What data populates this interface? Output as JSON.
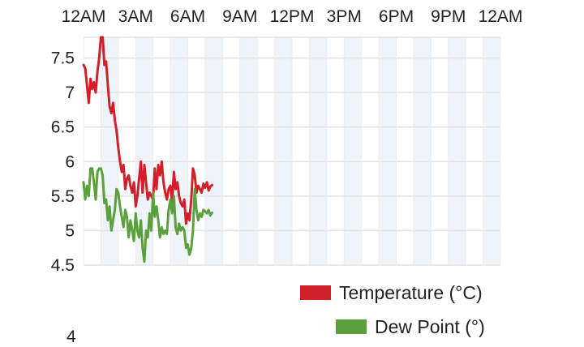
{
  "chart_data": {
    "type": "line",
    "x_ticks": [
      "12AM",
      "3AM",
      "6AM",
      "9AM",
      "12PM",
      "3PM",
      "6PM",
      "9PM",
      "12AM"
    ],
    "y_ticks": [
      "4.5",
      "5",
      "5.5",
      "6",
      "6.5",
      "7",
      "7.5"
    ],
    "ylim": [
      4.5,
      7.8
    ],
    "xlim_hours": [
      0,
      24
    ],
    "grid": true,
    "legend_position": "bottom-right",
    "series": [
      {
        "name": "Temperature (°C)",
        "color": "#d0202a",
        "x_hours": [
          0.0,
          0.1,
          0.2,
          0.3,
          0.4,
          0.5,
          0.6,
          0.7,
          0.8,
          0.9,
          1.0,
          1.1,
          1.2,
          1.3,
          1.4,
          1.5,
          1.6,
          1.7,
          1.8,
          1.9,
          2.0,
          2.1,
          2.2,
          2.3,
          2.4,
          2.5,
          2.6,
          2.7,
          2.8,
          2.9,
          3.0,
          3.1,
          3.2,
          3.3,
          3.4,
          3.5,
          3.6,
          3.7,
          3.8,
          3.9,
          4.0,
          4.1,
          4.2,
          4.3,
          4.4,
          4.5,
          4.6,
          4.7,
          4.8,
          4.9,
          5.0,
          5.1,
          5.2,
          5.3,
          5.4,
          5.5,
          5.6,
          5.7,
          5.8,
          5.9,
          6.0,
          6.1,
          6.2,
          6.3,
          6.4,
          6.5,
          6.6,
          6.7,
          6.8,
          6.9,
          7.0,
          7.1,
          7.2,
          7.3,
          7.4
        ],
        "values": [
          7.4,
          7.35,
          7.1,
          6.85,
          7.2,
          7.05,
          7.15,
          7.0,
          7.3,
          7.5,
          7.9,
          7.8,
          7.4,
          7.45,
          7.1,
          6.8,
          6.7,
          6.85,
          6.6,
          6.45,
          6.2,
          6.0,
          5.85,
          5.95,
          5.6,
          5.75,
          5.8,
          5.65,
          5.55,
          5.7,
          5.35,
          5.5,
          5.75,
          6.0,
          5.55,
          5.95,
          5.7,
          5.45,
          5.55,
          5.5,
          5.45,
          5.9,
          5.6,
          5.95,
          5.8,
          6.0,
          5.7,
          5.55,
          5.45,
          5.6,
          5.65,
          5.4,
          5.85,
          5.6,
          5.7,
          5.5,
          5.4,
          5.35,
          5.45,
          5.1,
          5.25,
          5.15,
          5.45,
          5.9,
          5.8,
          5.55,
          5.65,
          5.6,
          5.55,
          5.68,
          5.62,
          5.7,
          5.58,
          5.64,
          5.66
        ]
      },
      {
        "name": "Dew Point (°)",
        "color": "#5aa03c",
        "x_hours": [
          0.0,
          0.1,
          0.2,
          0.3,
          0.4,
          0.5,
          0.6,
          0.7,
          0.8,
          0.9,
          1.0,
          1.1,
          1.2,
          1.3,
          1.4,
          1.5,
          1.6,
          1.7,
          1.8,
          1.9,
          2.0,
          2.1,
          2.2,
          2.3,
          2.4,
          2.5,
          2.6,
          2.7,
          2.8,
          2.9,
          3.0,
          3.1,
          3.2,
          3.3,
          3.4,
          3.5,
          3.6,
          3.7,
          3.8,
          3.9,
          4.0,
          4.1,
          4.2,
          4.3,
          4.4,
          4.5,
          4.6,
          4.7,
          4.8,
          4.9,
          5.0,
          5.1,
          5.2,
          5.3,
          5.4,
          5.5,
          5.6,
          5.7,
          5.8,
          5.9,
          6.0,
          6.1,
          6.2,
          6.3,
          6.4,
          6.5,
          6.6,
          6.7,
          6.8,
          6.9,
          7.0,
          7.1,
          7.2,
          7.3,
          7.4
        ],
        "values": [
          5.7,
          5.45,
          5.65,
          5.5,
          5.9,
          5.9,
          5.7,
          5.45,
          5.85,
          5.9,
          5.9,
          5.8,
          5.4,
          5.45,
          5.15,
          5.35,
          5.0,
          5.15,
          5.3,
          5.6,
          5.55,
          5.35,
          5.2,
          5.05,
          5.3,
          5.2,
          4.9,
          5.15,
          5.0,
          4.85,
          5.25,
          5.0,
          4.9,
          5.15,
          4.75,
          4.55,
          5.0,
          4.9,
          5.25,
          5.0,
          5.55,
          5.2,
          5.35,
          5.15,
          4.9,
          5.05,
          4.95,
          5.0,
          4.95,
          5.3,
          5.45,
          5.25,
          5.5,
          5.05,
          4.95,
          5.1,
          5.0,
          5.05,
          5.0,
          4.75,
          4.8,
          4.65,
          4.75,
          5.0,
          5.6,
          5.3,
          5.15,
          5.25,
          5.2,
          5.3,
          5.28,
          5.25,
          5.3,
          5.22,
          5.26
        ]
      }
    ]
  },
  "legend": {
    "temperature_label": "Temperature (°C)",
    "dewpoint_label": "Dew Point (°)"
  },
  "footer_fragment": "4"
}
